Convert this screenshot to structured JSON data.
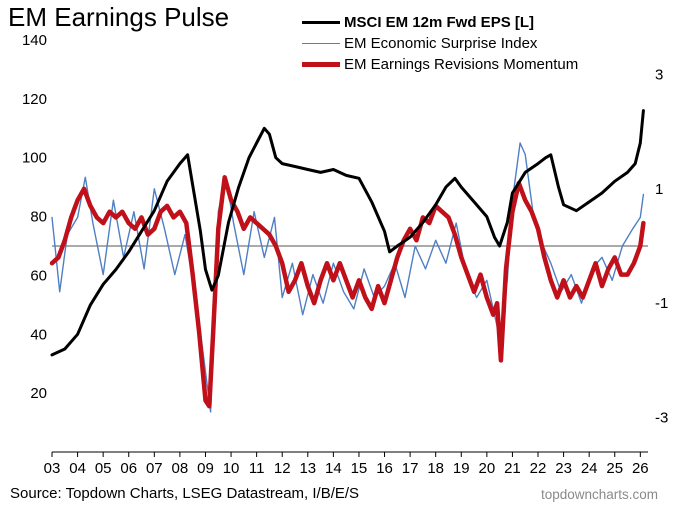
{
  "title": "EM Earnings Pulse",
  "source": "Source: Topdown Charts, LSEG Datastream, I/B/E/S",
  "brand": "topdowncharts.com",
  "colors": {
    "eps": "#000000",
    "surprise": "#4f7fc4",
    "revisions": "#c0101a",
    "zero_line": "#555555"
  },
  "chart_data": {
    "type": "line",
    "title": "EM Earnings Pulse",
    "legend": [
      {
        "name": "MSCI EM 12m Fwd EPS [L]",
        "axis": "left",
        "style": "bold"
      },
      {
        "name": "EM Economic Surprise Index",
        "axis": "right",
        "style": "thin"
      },
      {
        "name": "EM Earnings Revisions Momentum",
        "axis": "right",
        "style": "thick"
      }
    ],
    "legend_position": "top-right",
    "x_range": [
      2003,
      2026.3
    ],
    "x_tick_positions": [
      2003,
      2004,
      2005,
      2006,
      2007,
      2008,
      2009,
      2010,
      2011,
      2012,
      2013,
      2014,
      2015,
      2016,
      2017,
      2018,
      2019,
      2020,
      2021,
      2022,
      2023,
      2024,
      2025,
      2026
    ],
    "x_tick_labels": [
      "03",
      "04",
      "05",
      "06",
      "07",
      "08",
      "09",
      "10",
      "11",
      "12",
      "13",
      "14",
      "15",
      "16",
      "17",
      "18",
      "19",
      "20",
      "21",
      "22",
      "23",
      "24",
      "25",
      "26"
    ],
    "y_left": {
      "range": [
        0,
        140
      ],
      "ticks": [
        20,
        40,
        60,
        80,
        100,
        120,
        140
      ]
    },
    "y_right": {
      "range": [
        -3.6,
        3.6
      ],
      "ticks": [
        -3,
        -1,
        1,
        3
      ]
    },
    "series": [
      {
        "name": "MSCI EM 12m Fwd EPS [L]",
        "axis": "left",
        "x": [
          2003.0,
          2003.5,
          2004.0,
          2004.5,
          2005.0,
          2005.5,
          2006.0,
          2006.5,
          2007.0,
          2007.5,
          2008.0,
          2008.3,
          2008.55,
          2008.8,
          2009.0,
          2009.25,
          2009.5,
          2009.9,
          2010.3,
          2010.7,
          2011.0,
          2011.3,
          2011.5,
          2011.75,
          2012.0,
          2012.5,
          2013.0,
          2013.5,
          2014.0,
          2014.5,
          2015.0,
          2015.5,
          2016.0,
          2016.2,
          2016.5,
          2017.0,
          2017.5,
          2018.0,
          2018.4,
          2018.75,
          2019.0,
          2019.5,
          2020.0,
          2020.3,
          2020.5,
          2020.8,
          2021.0,
          2021.5,
          2022.0,
          2022.3,
          2022.5,
          2022.8,
          2023.0,
          2023.5,
          2024.0,
          2024.5,
          2025.0,
          2025.5,
          2025.8,
          2026.0,
          2026.12
        ],
        "values": [
          33,
          35,
          40,
          50,
          57,
          62,
          68,
          75,
          82,
          92,
          98,
          101,
          88,
          75,
          62,
          55,
          60,
          78,
          90,
          100,
          105,
          110,
          108,
          100,
          98,
          97,
          96,
          95,
          96,
          94,
          93,
          85,
          75,
          68,
          70,
          73,
          78,
          84,
          90,
          93,
          90,
          85,
          80,
          73,
          70,
          78,
          88,
          95,
          98,
          100,
          101,
          90,
          84,
          82,
          85,
          88,
          92,
          95,
          98,
          105,
          116
        ]
      },
      {
        "name": "EM Economic Surprise Index",
        "axis": "right",
        "x": [
          2003.0,
          2003.3,
          2003.6,
          2004.0,
          2004.3,
          2004.6,
          2005.0,
          2005.4,
          2005.8,
          2006.2,
          2006.6,
          2007.0,
          2007.4,
          2007.8,
          2008.2,
          2008.5,
          2008.8,
          2009.0,
          2009.2,
          2009.5,
          2009.8,
          2010.1,
          2010.5,
          2010.9,
          2011.3,
          2011.7,
          2012.0,
          2012.4,
          2012.8,
          2013.2,
          2013.6,
          2014.0,
          2014.4,
          2014.8,
          2015.2,
          2015.6,
          2016.0,
          2016.4,
          2016.8,
          2017.2,
          2017.6,
          2018.0,
          2018.4,
          2018.8,
          2019.2,
          2019.6,
          2020.0,
          2020.3,
          2020.5,
          2020.8,
          2021.0,
          2021.3,
          2021.5,
          2021.8,
          2022.1,
          2022.5,
          2022.9,
          2023.3,
          2023.7,
          2024.1,
          2024.5,
          2024.9,
          2025.3,
          2025.7,
          2026.0,
          2026.12
        ],
        "values": [
          0.5,
          -0.8,
          0.2,
          0.5,
          1.2,
          0.4,
          -0.5,
          0.8,
          -0.2,
          0.6,
          -0.4,
          1.0,
          0.3,
          -0.5,
          0.2,
          -0.6,
          -1.5,
          -2.2,
          -2.9,
          0.6,
          1.2,
          0.4,
          -0.5,
          0.6,
          -0.2,
          0.5,
          -0.9,
          -0.3,
          -1.2,
          -0.5,
          -1.0,
          -0.3,
          -0.8,
          -1.1,
          -0.4,
          -0.9,
          -0.7,
          -0.3,
          -0.9,
          0.0,
          -0.4,
          0.1,
          -0.3,
          0.4,
          -0.5,
          -0.9,
          -0.6,
          -1.2,
          -1.6,
          -0.6,
          0.8,
          1.8,
          1.6,
          0.6,
          0.1,
          -0.3,
          -0.8,
          -0.5,
          -1.0,
          -0.4,
          -0.2,
          -0.6,
          0.0,
          0.3,
          0.5,
          0.9
        ]
      },
      {
        "name": "EM Earnings Revisions Momentum",
        "axis": "right",
        "x": [
          2003.0,
          2003.25,
          2003.5,
          2003.75,
          2004.0,
          2004.25,
          2004.5,
          2004.75,
          2005.0,
          2005.25,
          2005.5,
          2005.75,
          2006.0,
          2006.25,
          2006.5,
          2006.75,
          2007.0,
          2007.25,
          2007.5,
          2007.75,
          2008.0,
          2008.25,
          2008.5,
          2008.75,
          2009.0,
          2009.15,
          2009.3,
          2009.5,
          2009.75,
          2010.0,
          2010.25,
          2010.5,
          2010.75,
          2011.0,
          2011.25,
          2011.5,
          2011.75,
          2012.0,
          2012.25,
          2012.5,
          2012.75,
          2013.0,
          2013.25,
          2013.5,
          2013.75,
          2014.0,
          2014.25,
          2014.5,
          2014.75,
          2015.0,
          2015.25,
          2015.5,
          2015.75,
          2016.0,
          2016.25,
          2016.5,
          2016.75,
          2017.0,
          2017.25,
          2017.5,
          2017.75,
          2018.0,
          2018.25,
          2018.5,
          2018.75,
          2019.0,
          2019.25,
          2019.5,
          2019.75,
          2020.0,
          2020.25,
          2020.4,
          2020.55,
          2020.75,
          2021.0,
          2021.25,
          2021.5,
          2021.75,
          2022.0,
          2022.25,
          2022.5,
          2022.75,
          2023.0,
          2023.25,
          2023.5,
          2023.75,
          2024.0,
          2024.25,
          2024.5,
          2024.75,
          2025.0,
          2025.25,
          2025.5,
          2025.75,
          2026.0,
          2026.12
        ],
        "values": [
          -0.3,
          -0.2,
          0.1,
          0.5,
          0.8,
          1.0,
          0.7,
          0.5,
          0.4,
          0.6,
          0.5,
          0.6,
          0.4,
          0.3,
          0.5,
          0.2,
          0.3,
          0.6,
          0.7,
          0.5,
          0.6,
          0.4,
          -0.5,
          -1.5,
          -2.7,
          -2.8,
          -1.5,
          0.3,
          1.2,
          0.8,
          0.6,
          0.3,
          0.5,
          0.4,
          0.3,
          0.2,
          0.0,
          -0.3,
          -0.8,
          -0.6,
          -0.3,
          -0.7,
          -1.0,
          -0.6,
          -0.3,
          -0.6,
          -0.3,
          -0.6,
          -0.9,
          -0.6,
          -0.9,
          -1.1,
          -0.7,
          -1.0,
          -0.6,
          -0.2,
          0.1,
          0.3,
          0.1,
          0.5,
          0.4,
          0.7,
          0.6,
          0.5,
          0.2,
          -0.2,
          -0.5,
          -0.8,
          -0.5,
          -0.9,
          -1.2,
          -1.0,
          -2.0,
          -0.4,
          0.6,
          1.1,
          0.8,
          0.6,
          0.3,
          -0.2,
          -0.6,
          -0.9,
          -0.6,
          -0.9,
          -0.7,
          -0.9,
          -0.6,
          -0.3,
          -0.7,
          -0.4,
          -0.2,
          -0.5,
          -0.5,
          -0.3,
          0.0,
          0.4
        ]
      }
    ]
  }
}
